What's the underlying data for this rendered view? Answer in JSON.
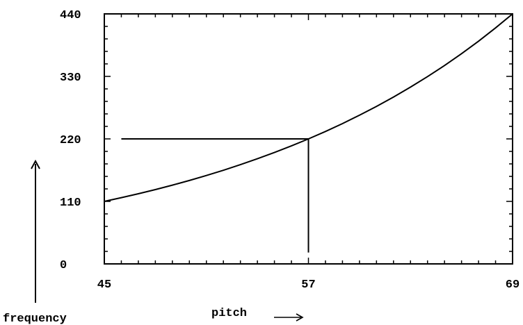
{
  "chart_data": {
    "type": "line",
    "xlabel": "pitch",
    "ylabel": "frequency",
    "xlim": [
      45,
      69
    ],
    "ylim": [
      0,
      440
    ],
    "x_ticks": [
      45,
      57,
      69
    ],
    "y_ticks": [
      0,
      110,
      220,
      330,
      440
    ],
    "series": [
      {
        "x": [
          45,
          46,
          47,
          48,
          49,
          50,
          51,
          52,
          53,
          54,
          55,
          56,
          57,
          58,
          59,
          60,
          61,
          62,
          63,
          64,
          65,
          66,
          67,
          68,
          69
        ],
        "values": [
          110,
          116.54,
          123.47,
          130.81,
          138.59,
          146.83,
          155.56,
          164.81,
          174.61,
          185,
          196,
          207.65,
          220,
          233.08,
          246.94,
          261.63,
          277.18,
          293.66,
          311.13,
          329.63,
          349.23,
          369.99,
          392,
          415.3,
          440
        ]
      }
    ],
    "reference_lines": [
      {
        "axis": "y",
        "value": 220,
        "from_x": 46,
        "to_x": 57
      },
      {
        "axis": "x",
        "value": 57,
        "from_y": 20,
        "to_y": 220
      }
    ],
    "grid": false
  }
}
